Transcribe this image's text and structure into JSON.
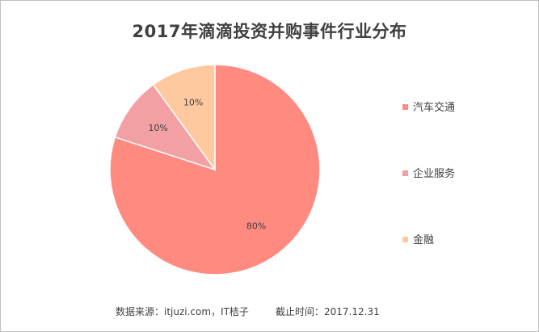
{
  "chart_data": {
    "type": "pie",
    "title": "2017年滴滴投资并购事件行业分布",
    "categories": [
      "汽车交通",
      "企业服务",
      "金融"
    ],
    "values": [
      80,
      10,
      10
    ],
    "labels": [
      "80%",
      "10%",
      "10%"
    ],
    "colors": [
      "#ff8a80",
      "#f2a0a3",
      "#ffc9a0"
    ],
    "legend_position": "right"
  },
  "footer": {
    "source": "数据来源：itjuzi.com，IT桔子",
    "cutoff": "截止时间：2017.12.31"
  }
}
